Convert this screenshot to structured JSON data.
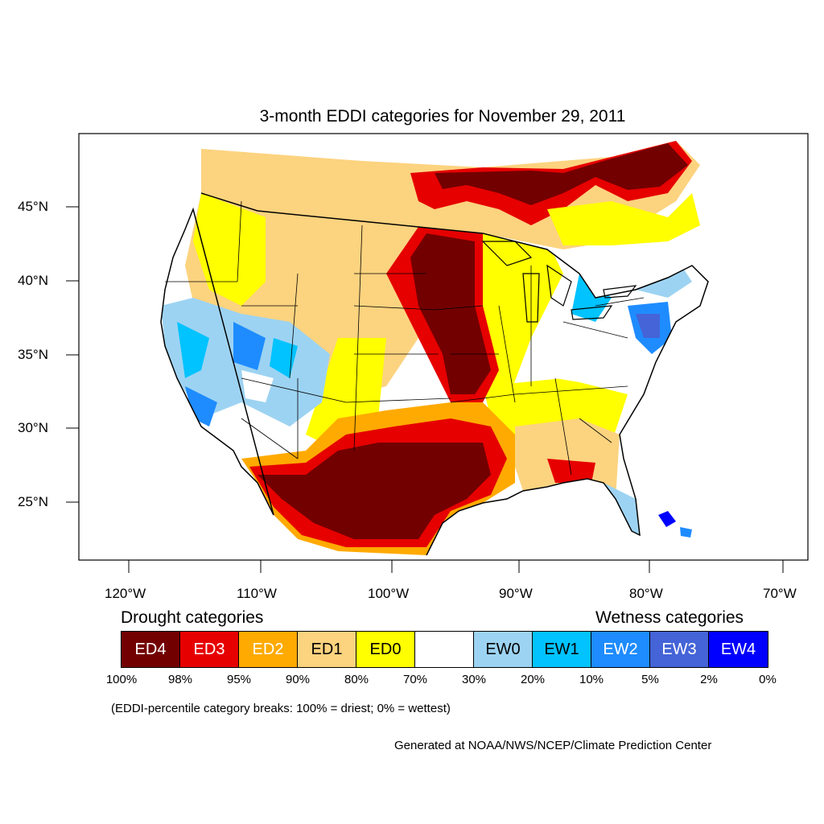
{
  "title": "3-month EDDI categories for November 29, 2011",
  "axes": {
    "lat_labels": [
      "45°N",
      "40°N",
      "35°N",
      "30°N",
      "25°N"
    ],
    "lon_labels": [
      "120°W",
      "110°W",
      "100°W",
      "90°W",
      "80°W",
      "70°W"
    ]
  },
  "legend": {
    "drought_heading": "Drought categories",
    "wetness_heading": "Wetness categories",
    "categories": [
      {
        "label": "ED4",
        "color": "#730000",
        "text_color": "#ffffff"
      },
      {
        "label": "ED3",
        "color": "#e60000",
        "text_color": "#ffffff"
      },
      {
        "label": "ED2",
        "color": "#ffaa00",
        "text_color": "#ffffff"
      },
      {
        "label": "ED1",
        "color": "#fcd37f",
        "text_color": "#000000"
      },
      {
        "label": "ED0",
        "color": "#ffff00",
        "text_color": "#000000"
      },
      {
        "label": "",
        "color": "#ffffff",
        "text_color": "#000000"
      },
      {
        "label": "EW0",
        "color": "#9dd3f2",
        "text_color": "#000000"
      },
      {
        "label": "EW1",
        "color": "#00c3ff",
        "text_color": "#000000"
      },
      {
        "label": "EW2",
        "color": "#1e8cff",
        "text_color": "#ffffff"
      },
      {
        "label": "EW3",
        "color": "#4464d7",
        "text_color": "#ffffff"
      },
      {
        "label": "EW4",
        "color": "#0000ff",
        "text_color": "#ffffff"
      }
    ],
    "percentiles": [
      "100%",
      "98%",
      "95%",
      "90%",
      "80%",
      "70%",
      "30%",
      "20%",
      "10%",
      "5%",
      "2%",
      "0%"
    ],
    "note": "(EDDI-percentile category breaks: 100% = driest; 0% = wettest)"
  },
  "credit": "Generated at NOAA/NWS/NCEP/Climate Prediction Center"
}
